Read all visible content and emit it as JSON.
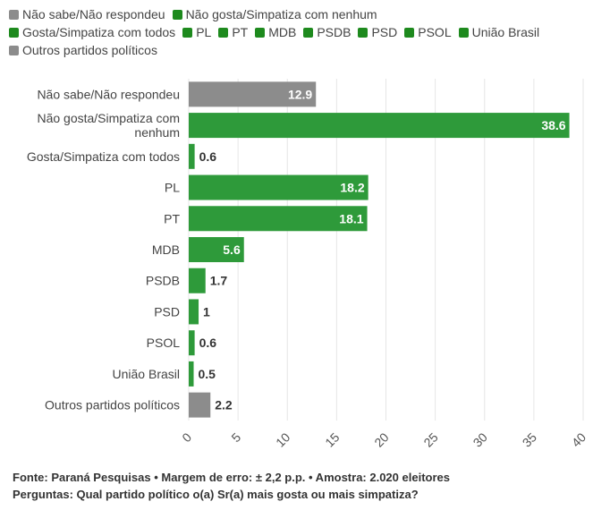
{
  "legend": [
    {
      "label": "Não sabe/Não respondeu",
      "color": "#8c8c8c"
    },
    {
      "label": "Não gosta/Simpatiza com nenhum",
      "color": "#1e8a1e"
    },
    {
      "label": "Gosta/Simpatiza com todos",
      "color": "#1e8a1e"
    },
    {
      "label": "PL",
      "color": "#1e8a1e"
    },
    {
      "label": "PT",
      "color": "#1e8a1e"
    },
    {
      "label": "MDB",
      "color": "#1e8a1e"
    },
    {
      "label": "PSDB",
      "color": "#1e8a1e"
    },
    {
      "label": "PSD",
      "color": "#1e8a1e"
    },
    {
      "label": "PSOL",
      "color": "#1e8a1e"
    },
    {
      "label": "União Brasil",
      "color": "#1e8a1e"
    },
    {
      "label": "Outros partidos políticos",
      "color": "#8c8c8c"
    }
  ],
  "chart_data": {
    "type": "bar",
    "orientation": "horizontal",
    "categories": [
      "Não sabe/Não respondeu",
      "Não gosta/Simpatiza com nenhum",
      "Gosta/Simpatiza com todos",
      "PL",
      "PT",
      "MDB",
      "PSDB",
      "PSD",
      "PSOL",
      "União Brasil",
      "Outros partidos políticos"
    ],
    "values": [
      12.9,
      38.6,
      0.6,
      18.2,
      18.1,
      5.6,
      1.7,
      1,
      0.6,
      0.5,
      2.2
    ],
    "value_labels": [
      "12.9",
      "38.6",
      "0.6",
      "18.2",
      "18.1",
      "5.6",
      "1.7",
      "1",
      "0.6",
      "0.5",
      "2.2"
    ],
    "bar_colors": [
      "#8c8c8c",
      "#2e9a3a",
      "#2e9a3a",
      "#2e9a3a",
      "#2e9a3a",
      "#2e9a3a",
      "#2e9a3a",
      "#2e9a3a",
      "#2e9a3a",
      "#2e9a3a",
      "#8c8c8c"
    ],
    "xticks": [
      "0",
      "5",
      "10",
      "15",
      "20",
      "25",
      "30",
      "35",
      "40"
    ],
    "xlim": [
      0,
      40
    ],
    "grid": true,
    "legend_position": "top"
  },
  "footer": {
    "source": "Fonte: Paraná Pesquisas • Margem de erro: ± 2,2 p.p. • Amostra: 2.020 eleitores",
    "question": "Perguntas: Qual partido político o(a) Sr(a) mais gosta ou mais simpatiza?"
  }
}
